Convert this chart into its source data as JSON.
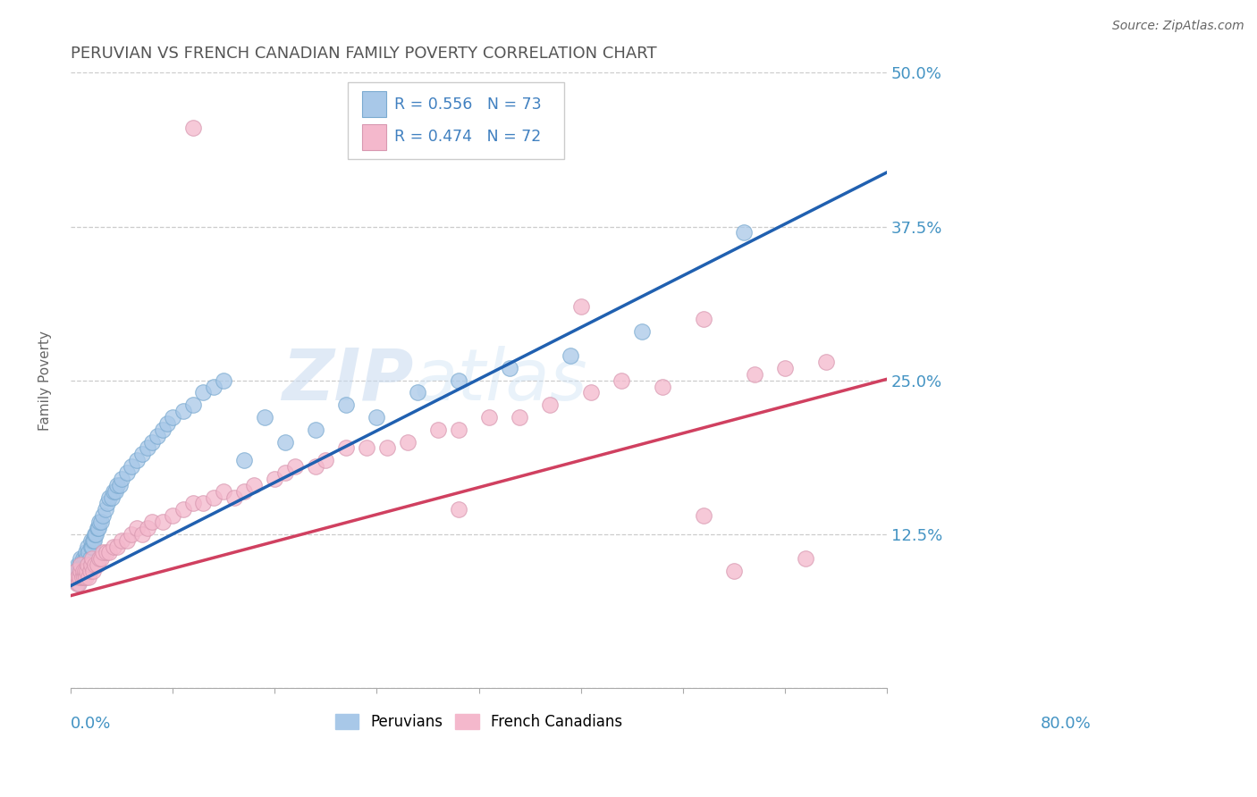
{
  "title": "PERUVIAN VS FRENCH CANADIAN FAMILY POVERTY CORRELATION CHART",
  "source": "Source: ZipAtlas.com",
  "ylabel": "Family Poverty",
  "xmin": 0.0,
  "xmax": 0.8,
  "ymin": 0.0,
  "ymax": 0.5,
  "yticks": [
    0.0,
    0.125,
    0.25,
    0.375,
    0.5
  ],
  "ytick_labels": [
    "",
    "12.5%",
    "25.0%",
    "37.5%",
    "50.0%"
  ],
  "xticks": [
    0.0,
    0.1,
    0.2,
    0.3,
    0.4,
    0.5,
    0.6,
    0.7,
    0.8
  ],
  "blue_scatter_color": "#a8c8e8",
  "pink_scatter_color": "#f4b8cc",
  "blue_line_color": "#2060b0",
  "pink_line_color": "#d04060",
  "axis_label_color": "#4393c3",
  "title_color": "#555555",
  "grid_color": "#cccccc",
  "legend_text_color": "#4080c0",
  "legend_label_blue": "Peruvians",
  "legend_label_pink": "French Canadians",
  "legend_R_blue": "R = 0.556",
  "legend_N_blue": "N = 73",
  "legend_R_pink": "R = 0.474",
  "legend_N_pink": "N = 72",
  "blue_intercept": 0.083,
  "blue_slope": 0.42,
  "pink_intercept": 0.075,
  "pink_slope": 0.22,
  "blue_x": [
    0.005,
    0.006,
    0.007,
    0.007,
    0.008,
    0.009,
    0.009,
    0.01,
    0.01,
    0.01,
    0.011,
    0.011,
    0.012,
    0.012,
    0.013,
    0.013,
    0.014,
    0.015,
    0.015,
    0.016,
    0.016,
    0.017,
    0.017,
    0.018,
    0.019,
    0.02,
    0.02,
    0.021,
    0.022,
    0.023,
    0.024,
    0.025,
    0.026,
    0.027,
    0.028,
    0.03,
    0.032,
    0.034,
    0.036,
    0.038,
    0.04,
    0.042,
    0.044,
    0.046,
    0.048,
    0.05,
    0.055,
    0.06,
    0.065,
    0.07,
    0.075,
    0.08,
    0.085,
    0.09,
    0.095,
    0.1,
    0.11,
    0.12,
    0.13,
    0.14,
    0.15,
    0.17,
    0.19,
    0.21,
    0.24,
    0.27,
    0.3,
    0.34,
    0.38,
    0.43,
    0.49,
    0.56,
    0.66
  ],
  "blue_y": [
    0.095,
    0.09,
    0.1,
    0.085,
    0.095,
    0.1,
    0.095,
    0.105,
    0.095,
    0.09,
    0.1,
    0.095,
    0.1,
    0.105,
    0.095,
    0.1,
    0.105,
    0.1,
    0.11,
    0.105,
    0.095,
    0.115,
    0.1,
    0.11,
    0.105,
    0.115,
    0.12,
    0.115,
    0.12,
    0.12,
    0.125,
    0.125,
    0.13,
    0.13,
    0.135,
    0.135,
    0.14,
    0.145,
    0.15,
    0.155,
    0.155,
    0.16,
    0.16,
    0.165,
    0.165,
    0.17,
    0.175,
    0.18,
    0.185,
    0.19,
    0.195,
    0.2,
    0.205,
    0.21,
    0.215,
    0.22,
    0.225,
    0.23,
    0.24,
    0.245,
    0.25,
    0.185,
    0.22,
    0.2,
    0.21,
    0.23,
    0.22,
    0.24,
    0.25,
    0.26,
    0.27,
    0.29,
    0.37
  ],
  "pink_x": [
    0.005,
    0.006,
    0.007,
    0.008,
    0.009,
    0.01,
    0.01,
    0.011,
    0.012,
    0.013,
    0.014,
    0.015,
    0.016,
    0.017,
    0.018,
    0.019,
    0.02,
    0.021,
    0.022,
    0.024,
    0.026,
    0.028,
    0.03,
    0.032,
    0.035,
    0.038,
    0.042,
    0.046,
    0.05,
    0.055,
    0.06,
    0.065,
    0.07,
    0.075,
    0.08,
    0.09,
    0.1,
    0.11,
    0.12,
    0.13,
    0.14,
    0.15,
    0.16,
    0.17,
    0.18,
    0.2,
    0.21,
    0.22,
    0.24,
    0.25,
    0.27,
    0.29,
    0.31,
    0.33,
    0.36,
    0.38,
    0.41,
    0.44,
    0.47,
    0.51,
    0.54,
    0.58,
    0.62,
    0.65,
    0.67,
    0.7,
    0.72,
    0.74,
    0.62,
    0.5,
    0.38,
    0.12
  ],
  "pink_y": [
    0.095,
    0.085,
    0.09,
    0.085,
    0.09,
    0.095,
    0.1,
    0.09,
    0.095,
    0.09,
    0.095,
    0.09,
    0.095,
    0.1,
    0.09,
    0.095,
    0.1,
    0.105,
    0.095,
    0.1,
    0.1,
    0.105,
    0.105,
    0.11,
    0.11,
    0.11,
    0.115,
    0.115,
    0.12,
    0.12,
    0.125,
    0.13,
    0.125,
    0.13,
    0.135,
    0.135,
    0.14,
    0.145,
    0.15,
    0.15,
    0.155,
    0.16,
    0.155,
    0.16,
    0.165,
    0.17,
    0.175,
    0.18,
    0.18,
    0.185,
    0.195,
    0.195,
    0.195,
    0.2,
    0.21,
    0.21,
    0.22,
    0.22,
    0.23,
    0.24,
    0.25,
    0.245,
    0.14,
    0.095,
    0.255,
    0.26,
    0.105,
    0.265,
    0.3,
    0.31,
    0.145,
    0.455
  ]
}
